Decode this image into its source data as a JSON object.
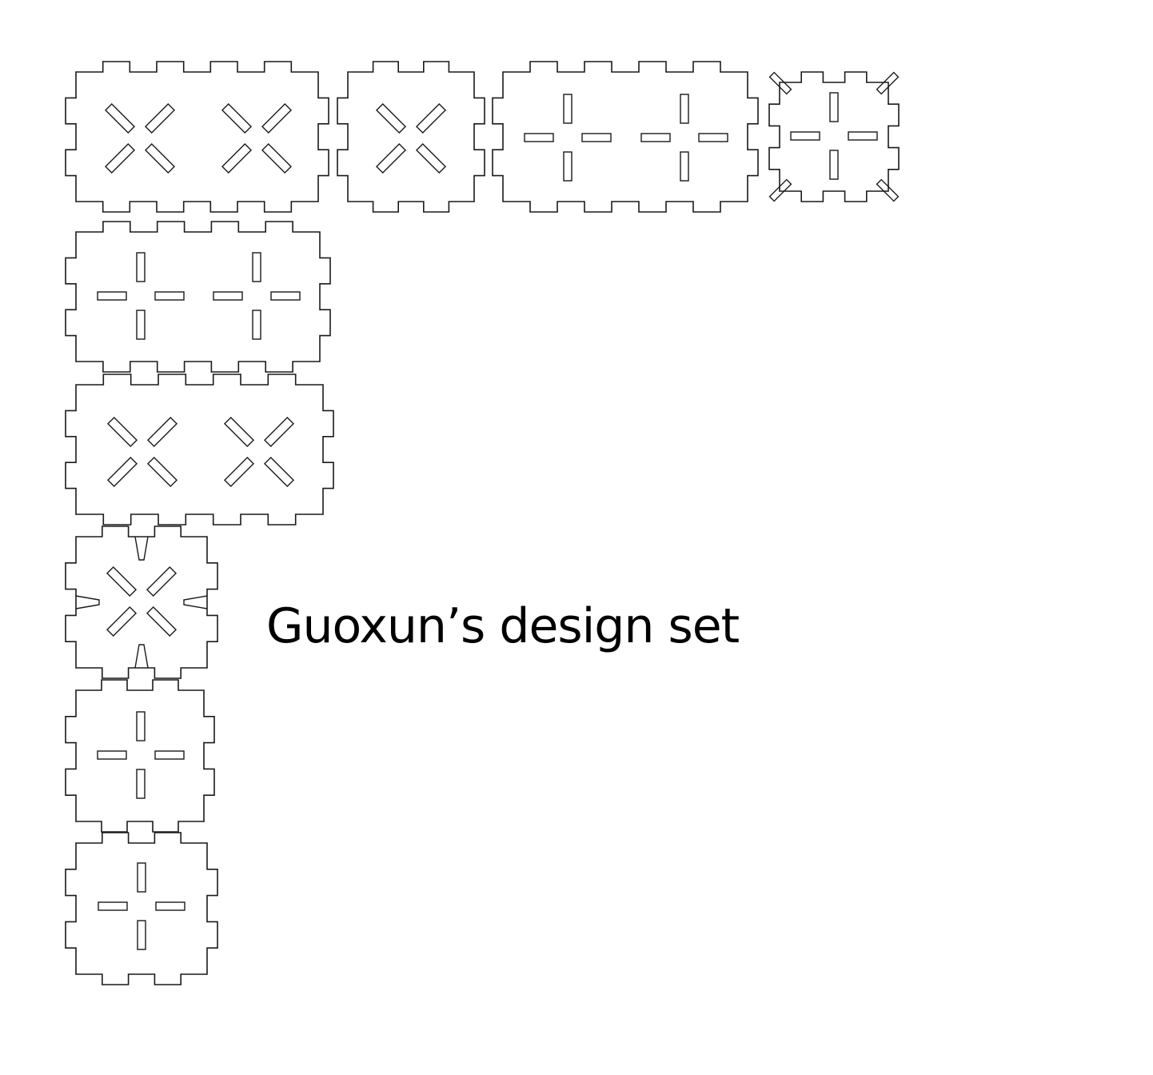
{
  "caption": "Guoxun’s design set",
  "colors": {
    "line": "#1a1a1a",
    "background": "#ffffff",
    "text": "#000000"
  },
  "pieces": [
    {
      "id": "panel-top-long-diagonal",
      "pattern": "diagonal-x",
      "groups": 2
    },
    {
      "id": "panel-top-short-diagonal",
      "pattern": "diagonal-x",
      "groups": 1
    },
    {
      "id": "panel-top-long-cross",
      "pattern": "plus",
      "groups": 2
    },
    {
      "id": "panel-top-square-cross",
      "pattern": "plus",
      "groups": 1,
      "corner_slots": true
    },
    {
      "id": "panel-left-long-cross",
      "pattern": "plus",
      "groups": 2
    },
    {
      "id": "panel-left-long-diagonal",
      "pattern": "diagonal-x",
      "groups": 2
    },
    {
      "id": "panel-left-star-diagonal",
      "pattern": "diagonal-x",
      "groups": 1,
      "star_notches": true
    },
    {
      "id": "panel-left-square-cross-a",
      "pattern": "plus",
      "groups": 1
    },
    {
      "id": "panel-left-square-cross-b",
      "pattern": "plus",
      "groups": 1
    }
  ]
}
